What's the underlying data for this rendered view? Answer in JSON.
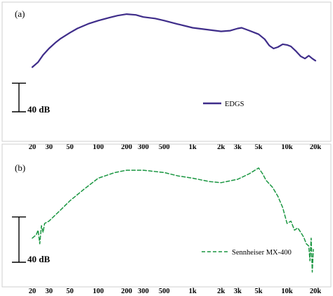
{
  "chart_data": [
    {
      "type": "line",
      "panel_label": "(a)",
      "x_scale": "log",
      "xlim": [
        20,
        20000
      ],
      "ylim_db": [
        0,
        110
      ],
      "x_tick_labels": [
        "20",
        "30",
        "50",
        "100",
        "200",
        "300",
        "500",
        "1k",
        "2k",
        "3k",
        "5k",
        "10k",
        "20k"
      ],
      "x_tick_values": [
        20,
        30,
        50,
        100,
        200,
        300,
        500,
        1000,
        2000,
        3000,
        5000,
        10000,
        20000
      ],
      "scale_bar_label": "40 dB",
      "scale_bar_db": 40,
      "legend_position": "center-right",
      "series": [
        {
          "name": "EDGS",
          "color": "#3f2d8a",
          "dash": "solid",
          "x": [
            20,
            23,
            26,
            30,
            35,
            40,
            50,
            60,
            80,
            100,
            130,
            160,
            200,
            250,
            300,
            400,
            500,
            700,
            1000,
            1500,
            2000,
            2500,
            3000,
            3300,
            4000,
            5000,
            5800,
            6500,
            7200,
            8000,
            9000,
            10000,
            11000,
            12500,
            14000,
            15500,
            17000,
            18500,
            20000
          ],
          "y": [
            28,
            35,
            45,
            54,
            62,
            68,
            76,
            82,
            89,
            93,
            97,
            100,
            102,
            101,
            98,
            96,
            93,
            88,
            83,
            80,
            78,
            79,
            82,
            83,
            79,
            74,
            67,
            58,
            54,
            56,
            60,
            59,
            57,
            50,
            43,
            40,
            44,
            40,
            37
          ]
        }
      ]
    },
    {
      "type": "line",
      "panel_label": "(b)",
      "x_scale": "log",
      "xlim": [
        20,
        20000
      ],
      "ylim_db": [
        0,
        110
      ],
      "x_tick_labels": [
        "20",
        "30",
        "50",
        "100",
        "200",
        "300",
        "500",
        "1k",
        "2k",
        "3k",
        "5k",
        "10k",
        "20k"
      ],
      "x_tick_values": [
        20,
        30,
        50,
        100,
        200,
        300,
        500,
        1000,
        2000,
        3000,
        5000,
        10000,
        20000
      ],
      "scale_bar_label": "40 dB",
      "scale_bar_db": 40,
      "legend_position": "bottom-right",
      "series": [
        {
          "name": "Sennheiser MX-400",
          "color": "#1a9641",
          "dash": "dashed",
          "x": [
            20,
            22,
            23,
            24,
            25,
            26,
            27,
            30,
            40,
            50,
            70,
            100,
            150,
            200,
            300,
            500,
            700,
            1000,
            1500,
            2000,
            3000,
            4000,
            5000,
            5500,
            6000,
            7000,
            8000,
            9000,
            10000,
            11000,
            12000,
            13000,
            14000,
            15000,
            16000,
            17000,
            17500,
            18000,
            18500,
            19000
          ],
          "y": [
            35,
            38,
            42,
            30,
            46,
            40,
            48,
            50,
            60,
            68,
            78,
            88,
            93,
            95,
            95,
            93,
            90,
            88,
            85,
            84,
            87,
            92,
            97,
            92,
            86,
            80,
            72,
            62,
            48,
            50,
            42,
            44,
            40,
            36,
            30,
            28,
            15,
            35,
            5,
            25
          ]
        }
      ]
    }
  ]
}
